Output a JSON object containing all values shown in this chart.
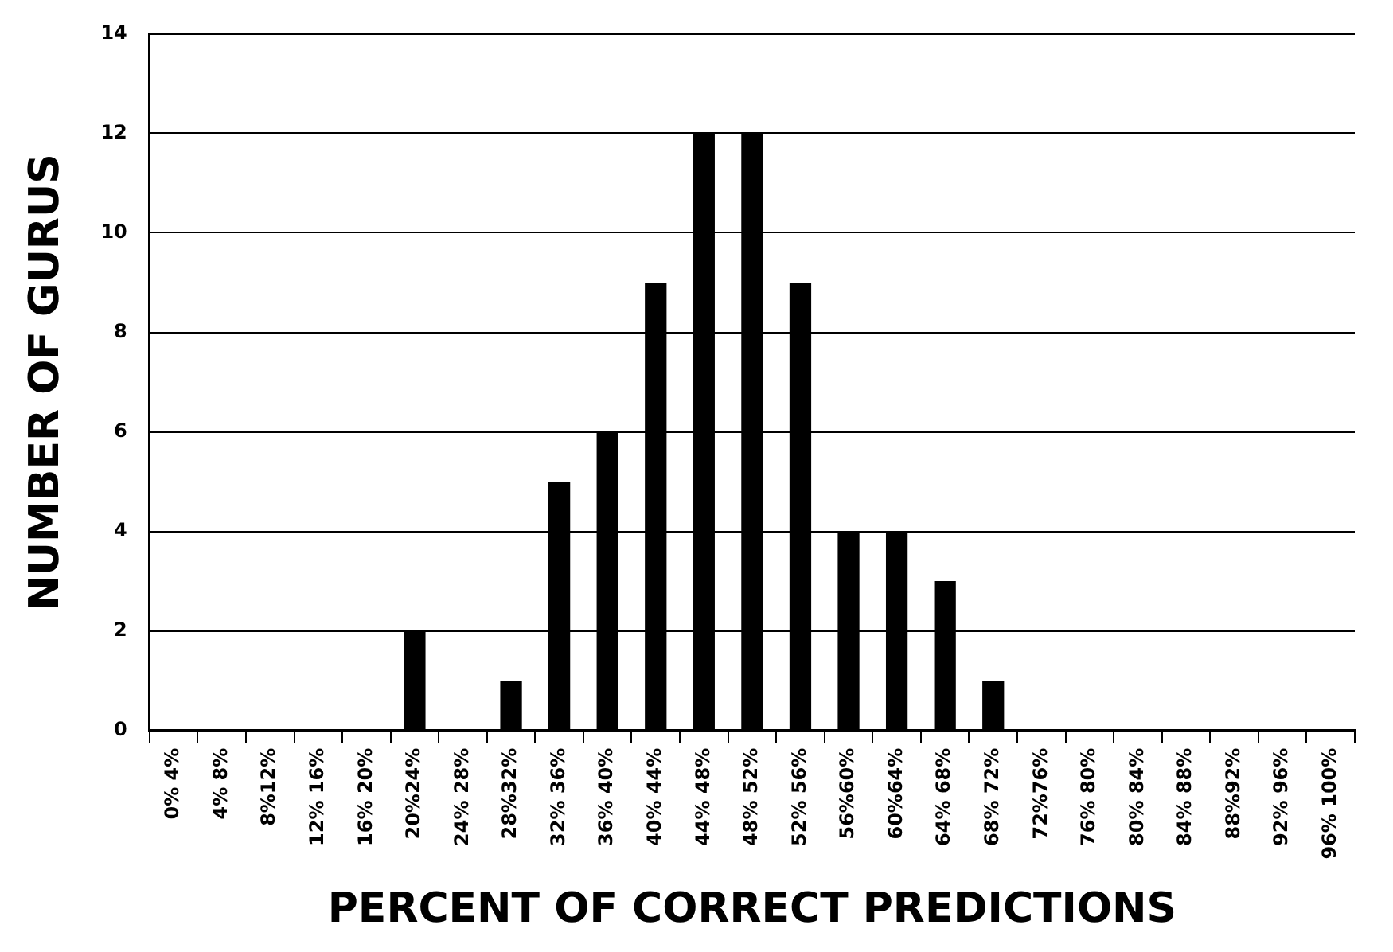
{
  "chart_data": {
    "type": "bar",
    "xlabel": "PERCENT OF CORRECT PREDICTIONS",
    "ylabel": "NUMBER OF GURUS",
    "categories": [
      "0% 4%",
      "4% 8%",
      "8%12%",
      "12% 16%",
      "16% 20%",
      "20%24%",
      "24% 28%",
      "28%32%",
      "32% 36%",
      "36% 40%",
      "40% 44%",
      "44% 48%",
      "48% 52%",
      "52% 56%",
      "56%60%",
      "60%64%",
      "64% 68%",
      "68% 72%",
      "72%76%",
      "76% 80%",
      "80% 84%",
      "84% 88%",
      "88%92%",
      "92% 96%",
      "96% 100%"
    ],
    "values": [
      0,
      0,
      0,
      0,
      0,
      2,
      0,
      1,
      5,
      6,
      9,
      12,
      12,
      9,
      4,
      4,
      3,
      1,
      0,
      0,
      0,
      0,
      0,
      0,
      0
    ],
    "color": "#000000",
    "ylim": [
      0,
      14
    ],
    "yticks": [
      0,
      2,
      4,
      6,
      8,
      10,
      12,
      14
    ],
    "grid": "y",
    "legend": false
  }
}
